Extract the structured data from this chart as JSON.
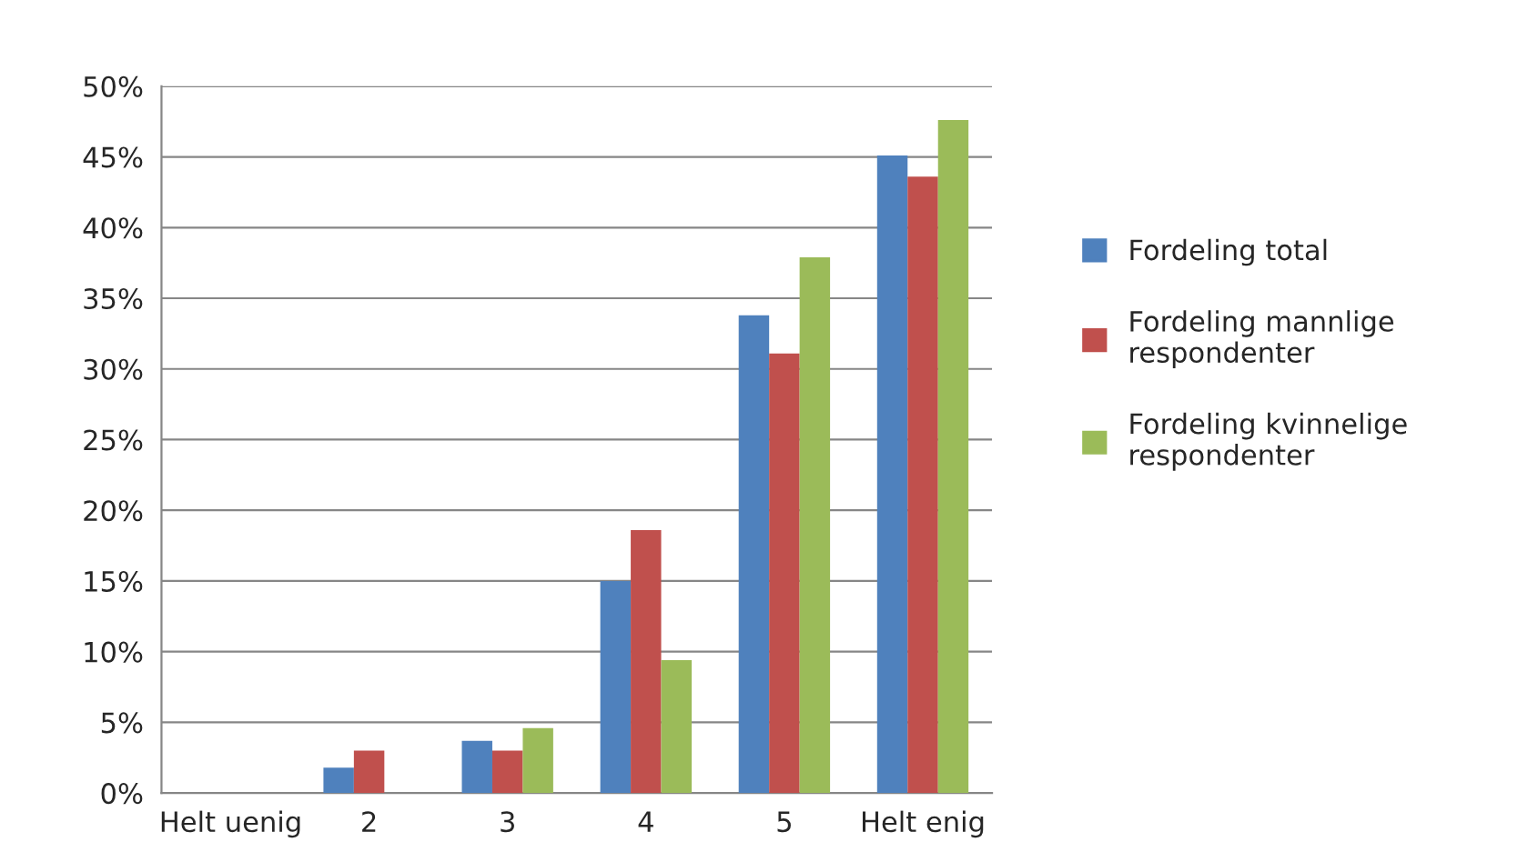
{
  "chart_data": {
    "type": "bar",
    "categories": [
      "Helt uenig",
      "2",
      "3",
      "4",
      "5",
      "Helt enig"
    ],
    "series": [
      {
        "name": "Fordeling total",
        "color": "#4f81bd",
        "values": [
          0,
          1.8,
          3.7,
          15.0,
          33.8,
          45.1
        ]
      },
      {
        "name": "Fordeling mannlige respondenter",
        "color": "#c0504d",
        "values": [
          0,
          3.0,
          3.0,
          18.6,
          31.1,
          43.6
        ]
      },
      {
        "name": "Fordeling kvinnelige respondenter",
        "color": "#9bbb59",
        "values": [
          0,
          0,
          4.6,
          9.4,
          37.9,
          47.6
        ]
      }
    ],
    "ylim": [
      0,
      50
    ],
    "yticks": [
      {
        "value": 0,
        "label": "0%"
      },
      {
        "value": 5,
        "label": "5%"
      },
      {
        "value": 10,
        "label": "10%"
      },
      {
        "value": 15,
        "label": "15%"
      },
      {
        "value": 20,
        "label": "20%"
      },
      {
        "value": 25,
        "label": "25%"
      },
      {
        "value": 30,
        "label": "30%"
      },
      {
        "value": 35,
        "label": "35%"
      },
      {
        "value": 40,
        "label": "40%"
      },
      {
        "value": 45,
        "label": "45%"
      },
      {
        "value": 50,
        "label": "50%"
      }
    ],
    "grid": "y",
    "legend": "right"
  }
}
